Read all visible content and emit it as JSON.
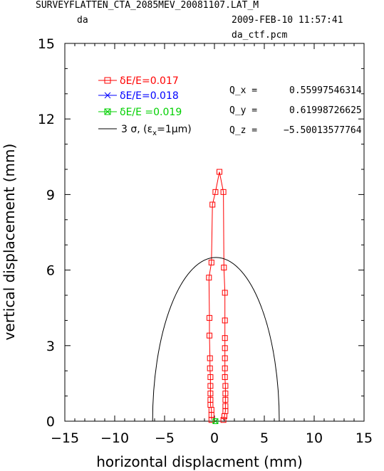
{
  "header": {
    "title": "SURVEYFLATTEN_CTA_2085MEV_20081107.LAT_M",
    "subtitle": "da",
    "timestamp": "2009-FEB-10  11:57:41",
    "filename": "da_ctf.pcm"
  },
  "chart_data": {
    "type": "line",
    "xlabel": "horizontal displacment (mm)",
    "ylabel": "vertical displacement (mm)",
    "xlim": [
      -15,
      15
    ],
    "ylim": [
      0,
      15
    ],
    "xticks": [
      -15,
      -10,
      -5,
      0,
      5,
      10,
      15
    ],
    "yticks": [
      0,
      3,
      6,
      9,
      12,
      15
    ],
    "x_tick_labels": [
      "−15",
      "−10",
      "−5",
      "0",
      "5",
      "10",
      "15"
    ],
    "y_tick_labels": [
      "0",
      "3",
      "6",
      "9",
      "12",
      "15"
    ],
    "grid": false,
    "legend_position": "top-left",
    "series": [
      {
        "name": "δE/E=0.017",
        "color": "#ff0000",
        "marker": "square",
        "points": [
          [
            -0.3,
            0.05
          ],
          [
            -0.3,
            0.25
          ],
          [
            -0.3,
            0.45
          ],
          [
            -0.4,
            0.65
          ],
          [
            -0.4,
            0.85
          ],
          [
            -0.4,
            1.1
          ],
          [
            -0.4,
            1.4
          ],
          [
            -0.4,
            1.75
          ],
          [
            -0.45,
            2.1
          ],
          [
            -0.45,
            2.5
          ],
          [
            -0.5,
            3.4
          ],
          [
            -0.5,
            4.1
          ],
          [
            -0.55,
            5.7
          ],
          [
            -0.3,
            6.3
          ],
          [
            -0.2,
            8.6
          ],
          [
            0.1,
            9.1
          ],
          [
            0.5,
            9.9
          ],
          [
            0.9,
            9.1
          ],
          [
            0.95,
            6.1
          ],
          [
            1.05,
            5.1
          ],
          [
            1.05,
            4.0
          ],
          [
            1.05,
            3.3
          ],
          [
            1.05,
            2.9
          ],
          [
            1.05,
            2.5
          ],
          [
            1.05,
            2.1
          ],
          [
            1.05,
            1.75
          ],
          [
            1.1,
            1.4
          ],
          [
            1.1,
            1.1
          ],
          [
            1.1,
            0.85
          ],
          [
            1.1,
            0.6
          ],
          [
            1.1,
            0.4
          ],
          [
            1.0,
            0.2
          ],
          [
            0.9,
            0.05
          ]
        ]
      },
      {
        "name": "δE/E=0.018",
        "color": "#0000ff",
        "marker": "x",
        "points": [
          [
            0.1,
            0.0
          ]
        ]
      },
      {
        "name": "δE/E =0.019",
        "color": "#00d000",
        "marker": "boxed-x",
        "points": [
          [
            0.1,
            0.0
          ]
        ]
      },
      {
        "name": "3  σ,  (ε",
        "name_sub": "x",
        "name_suffix": "=1μm)",
        "color": "#000000",
        "marker": "none",
        "curve": "ellipse",
        "center": [
          0.15,
          0
        ],
        "half_width": 6.35,
        "height": 6.5
      }
    ]
  },
  "tunes": [
    {
      "label": "Q_x  =",
      "value": "0.55997546314"
    },
    {
      "label": "Q_y  =",
      "value": "0.61998726625"
    },
    {
      "label": "Q_z  =",
      "value": "−5.50013577764"
    }
  ]
}
